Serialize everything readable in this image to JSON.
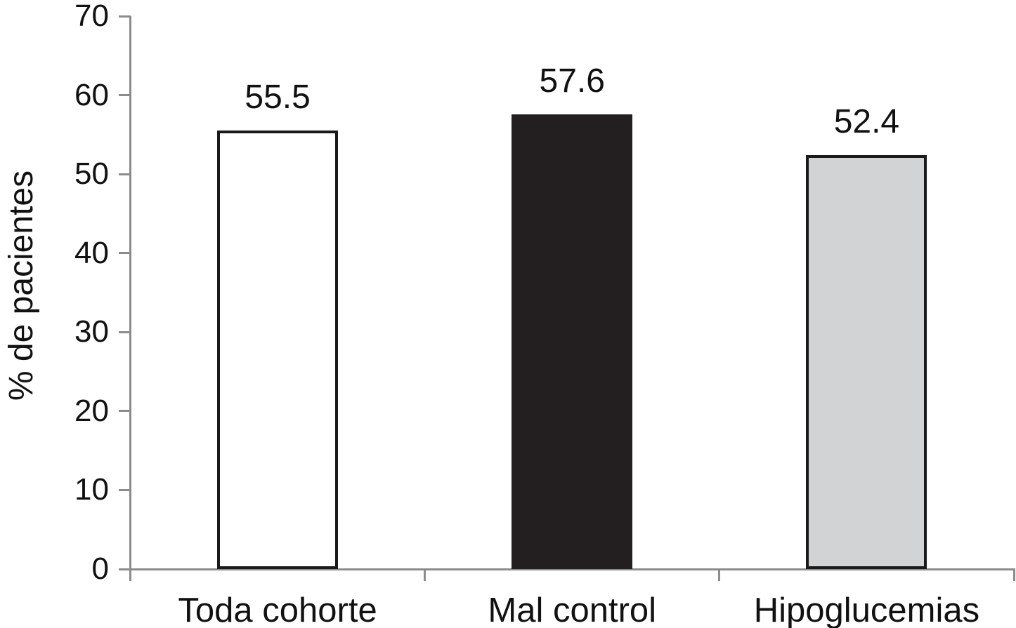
{
  "chart_data": {
    "type": "bar",
    "title": "",
    "xlabel": "",
    "ylabel": "% de pacientes",
    "categories": [
      "Toda cohorte",
      "Mal control",
      "Hipoglucemias"
    ],
    "values": [
      55.5,
      57.6,
      52.4
    ],
    "value_labels": [
      "55.5",
      "57.6",
      "52.4"
    ],
    "ylim": [
      0,
      70
    ],
    "yticks": [
      0,
      10,
      20,
      30,
      40,
      50,
      60,
      70
    ],
    "grid": false,
    "legend_position": "none",
    "bar_styles": [
      {
        "fill": "#ffffff",
        "stroke": "#1a1a1a"
      },
      {
        "fill": "#231f20",
        "stroke": "#231f20"
      },
      {
        "fill": "#d1d3d4",
        "stroke": "#1a1a1a"
      }
    ],
    "axis_color": "#8c8c8c",
    "text_color": "#111111"
  }
}
